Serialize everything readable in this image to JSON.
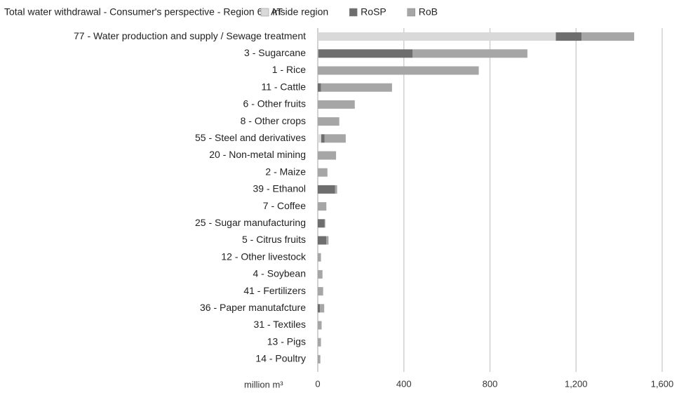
{
  "chart_data": {
    "type": "stacked_barh",
    "title": "Total water withdrawal - Consumer's perspective - Region 6 - AT",
    "x_label": "million m³",
    "categories": [
      "77 - Water production and supply / Sewage treatment",
      "3 - Sugarcane",
      "1 - Rice",
      "11 - Cattle",
      "6 - Other fruits",
      "8 - Other crops",
      "55 - Steel and derivatives",
      "20 - Non-metal mining",
      "2 - Maize",
      "39 - Ethanol",
      "7 - Coffee",
      "25 - Sugar manufacturing",
      "5 - Citrus fruits",
      "12 - Other livestock",
      "4 - Soybean",
      "41 - Fertilizers",
      "36 - Paper manutafcture",
      "31 - Textiles",
      "13 - Pigs",
      "14 - Poultry"
    ],
    "series": [
      {
        "name": "Inside region",
        "color": "#d9d9d9",
        "values": [
          1106,
          2,
          0,
          0,
          0,
          0,
          16,
          0,
          0,
          0,
          0,
          0,
          0,
          0,
          0,
          0,
          0,
          0,
          0,
          0
        ]
      },
      {
        "name": "RoSP",
        "color": "#6e6e6e",
        "values": [
          120,
          439,
          0,
          15,
          0,
          0,
          16,
          0,
          0,
          80,
          0,
          32,
          40,
          0,
          0,
          0,
          10,
          0,
          0,
          0
        ]
      },
      {
        "name": "RoB",
        "color": "#a6a6a6",
        "values": [
          244,
          533,
          748,
          330,
          172,
          100,
          98,
          85,
          45,
          10,
          40,
          3,
          10,
          15,
          22,
          25,
          20,
          18,
          15,
          12
        ]
      }
    ],
    "xlim": [
      0,
      1600
    ],
    "xticks": [
      0,
      400,
      800,
      {
        "value": 1200,
        "label": "1,200"
      },
      {
        "value": 1600,
        "label": "1,600"
      }
    ],
    "grid": true,
    "legend": "top"
  }
}
